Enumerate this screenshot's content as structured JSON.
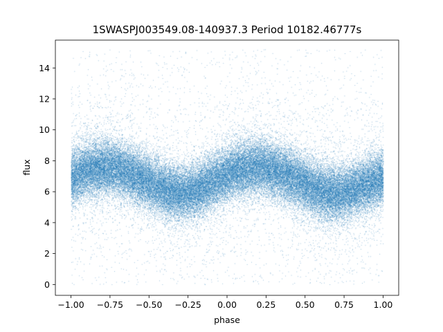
{
  "chart_data": {
    "type": "scatter",
    "title": "1SWASPJ003549.08-140937.3 Period 10182.46777s",
    "xlabel": "phase",
    "ylabel": "flux",
    "xlim": [
      -1.1,
      1.1
    ],
    "ylim": [
      -0.7,
      15.8
    ],
    "x_ticks": [
      -1.0,
      -0.75,
      -0.5,
      -0.25,
      0.0,
      0.25,
      0.5,
      0.75,
      1.0
    ],
    "x_tick_labels": [
      "−1.00",
      "−0.75",
      "−0.50",
      "−0.25",
      "0.00",
      "0.25",
      "0.50",
      "0.75",
      "1.00"
    ],
    "y_ticks": [
      0,
      2,
      4,
      6,
      8,
      10,
      12,
      14
    ],
    "y_tick_labels": [
      "0",
      "2",
      "4",
      "6",
      "8",
      "10",
      "12",
      "14"
    ],
    "grid": false,
    "marker_color": "#1f77b4",
    "phase_range": [
      -1.0,
      1.0
    ],
    "flux_clip": [
      0.0,
      15.2
    ],
    "light_curve_profile": {
      "phase": [
        -1.0,
        -0.9,
        -0.8,
        -0.7,
        -0.6,
        -0.5,
        -0.4,
        -0.3,
        -0.2,
        -0.1,
        0.0,
        0.1,
        0.2,
        0.3,
        0.4,
        0.5,
        0.6,
        0.7,
        0.8,
        0.9,
        1.0
      ],
      "median_flux": [
        6.9,
        7.4,
        7.6,
        7.5,
        7.1,
        6.6,
        6.1,
        5.9,
        6.1,
        6.6,
        7.2,
        7.5,
        7.6,
        7.4,
        7.0,
        6.5,
        6.0,
        5.9,
        6.1,
        6.5,
        6.9
      ]
    },
    "scatter_sigma_core": 0.9,
    "n_points_rendered": 60000
  }
}
